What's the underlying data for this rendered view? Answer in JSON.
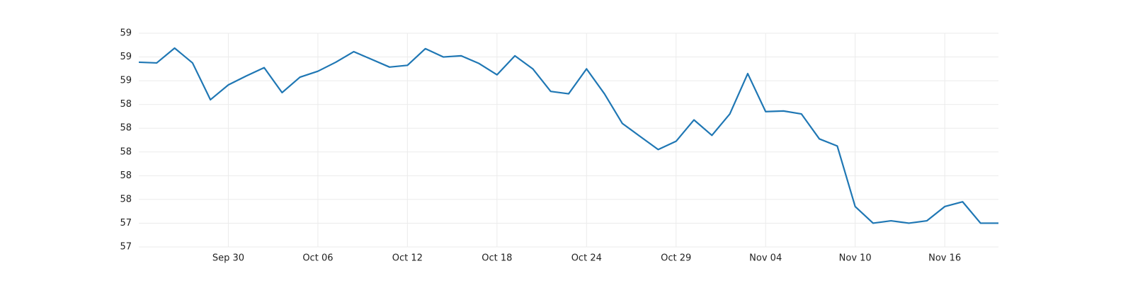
{
  "chart_data": {
    "type": "line",
    "categories": [
      null,
      null,
      null,
      null,
      null,
      "Sep 30",
      null,
      null,
      null,
      null,
      "Oct 06",
      null,
      null,
      null,
      null,
      "Oct 12",
      null,
      null,
      null,
      null,
      "Oct 18",
      null,
      null,
      null,
      null,
      "Oct 24",
      null,
      null,
      null,
      null,
      "Oct 29",
      null,
      null,
      null,
      null,
      "Nov 04",
      null,
      null,
      null,
      null,
      "Nov 10",
      null,
      null,
      null,
      null,
      "Nov 16",
      null,
      null,
      null
    ],
    "series": [
      {
        "color": "#1f77b4",
        "values": [
          58.756,
          58.75,
          58.875,
          58.75,
          58.44,
          58.565,
          58.64,
          58.71,
          58.5,
          58.63,
          58.68,
          58.756,
          58.845,
          58.78,
          58.715,
          58.73,
          58.87,
          58.8,
          58.81,
          58.745,
          58.65,
          58.81,
          58.7,
          58.51,
          58.49,
          58.7,
          58.49,
          58.24,
          58.13,
          58.02,
          58.09,
          58.27,
          58.14,
          58.32,
          58.66,
          58.34,
          58.345,
          58.32,
          58.11,
          58.05,
          57.54,
          57.4,
          57.42,
          57.4,
          57.42,
          57.54,
          57.58,
          57.4,
          57.4
        ]
      }
    ],
    "ylim": [
      57.2,
      59.0
    ],
    "yticks": [
      {
        "value": 57.2,
        "label": "57"
      },
      {
        "value": 57.4,
        "label": "57"
      },
      {
        "value": 57.6,
        "label": "58"
      },
      {
        "value": 57.8,
        "label": "58"
      },
      {
        "value": 58.0,
        "label": "58"
      },
      {
        "value": 58.2,
        "label": "58"
      },
      {
        "value": 58.4,
        "label": "58"
      },
      {
        "value": 58.6,
        "label": "59"
      },
      {
        "value": 58.8,
        "label": "59"
      },
      {
        "value": 59.0,
        "label": "59"
      }
    ],
    "grid": true
  }
}
